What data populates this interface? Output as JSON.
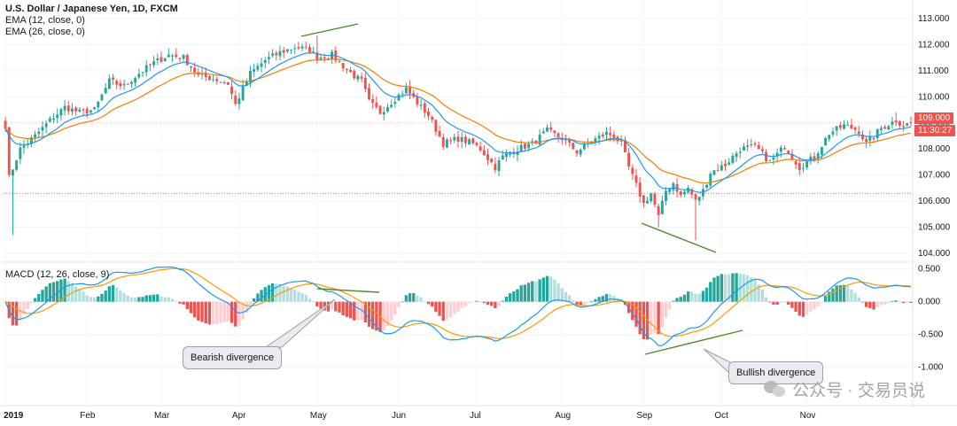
{
  "price_legend": {
    "title": "U.S. Dollar / Japanese Yen, 1D, FXCM",
    "ema_fast": "EMA (12, close, 0)",
    "ema_slow": "EMA (26, close, 0)"
  },
  "macd_legend": {
    "title": "MACD (12, 26, close, 9)"
  },
  "badges": {
    "last_price": "109.000",
    "countdown": "11:30:27"
  },
  "callouts": {
    "bearish": "Bearish divergence",
    "bullish": "Bullish divergence"
  },
  "watermark": {
    "text": "公众号 · 交易员说"
  },
  "colors": {
    "up": "#26a69a",
    "down": "#ef5350",
    "ema_fast": "#2196f3",
    "ema_slow": "#f57c00",
    "macd_line": "#2196f3",
    "signal_line": "#ff9800",
    "hist_up_strong": "#26a69a",
    "hist_up_weak": "#b2dfdb",
    "hist_down_strong": "#ef5350",
    "hist_down_weak": "#ffcdd2",
    "divergence_line": "#4c8c2b",
    "reference_line": "#e57373",
    "badge_bg": "#ef5350"
  },
  "chart_data": [
    {
      "type": "candlestick",
      "title": "U.S. Dollar / Japanese Yen, 1D, FXCM",
      "ylim": [
        103.8,
        113.3
      ],
      "y_ticks": [
        "113.000",
        "112.000",
        "111.000",
        "110.000",
        "109.000",
        "108.000",
        "107.000",
        "106.000",
        "105.000",
        "104.000"
      ],
      "x_ticks": [
        "2019",
        "Feb",
        "Mar",
        "Apr",
        "May",
        "Jun",
        "Jul",
        "Aug",
        "Sep",
        "Oct",
        "Nov"
      ],
      "anchor_closes": [
        [
          0,
          108.9
        ],
        [
          1,
          106.9
        ],
        [
          4,
          108.0
        ],
        [
          8,
          108.5
        ],
        [
          12,
          109.1
        ],
        [
          16,
          109.6
        ],
        [
          20,
          109.4
        ],
        [
          24,
          109.5
        ],
        [
          28,
          110.6
        ],
        [
          32,
          110.4
        ],
        [
          36,
          110.9
        ],
        [
          40,
          111.3
        ],
        [
          44,
          111.6
        ],
        [
          48,
          111.5
        ],
        [
          52,
          110.8
        ],
        [
          56,
          110.7
        ],
        [
          60,
          110.5
        ],
        [
          62,
          109.7
        ],
        [
          66,
          110.9
        ],
        [
          70,
          111.4
        ],
        [
          74,
          111.7
        ],
        [
          78,
          111.9
        ],
        [
          82,
          111.8
        ],
        [
          84,
          111.5
        ],
        [
          88,
          111.6
        ],
        [
          90,
          111.3
        ],
        [
          94,
          110.8
        ],
        [
          96,
          110.6
        ],
        [
          98,
          109.8
        ],
        [
          101,
          109.4
        ],
        [
          104,
          109.8
        ],
        [
          108,
          110.3
        ],
        [
          112,
          109.6
        ],
        [
          114,
          109.3
        ],
        [
          118,
          108.2
        ],
        [
          122,
          108.4
        ],
        [
          126,
          108.2
        ],
        [
          128,
          108.0
        ],
        [
          132,
          107.3
        ],
        [
          134,
          107.7
        ],
        [
          138,
          108.0
        ],
        [
          142,
          108.2
        ],
        [
          146,
          108.7
        ],
        [
          150,
          108.4
        ],
        [
          154,
          107.9
        ],
        [
          158,
          108.3
        ],
        [
          162,
          108.6
        ],
        [
          164,
          108.5
        ],
        [
          166,
          108.2
        ],
        [
          168,
          107.3
        ],
        [
          170,
          106.6
        ],
        [
          172,
          105.9
        ],
        [
          174,
          106.3
        ],
        [
          176,
          105.4
        ],
        [
          178,
          106.4
        ],
        [
          180,
          106.7
        ],
        [
          182,
          106.2
        ],
        [
          184,
          106.5
        ],
        [
          186,
          106.0
        ],
        [
          188,
          106.4
        ],
        [
          190,
          107.1
        ],
        [
          194,
          107.4
        ],
        [
          198,
          108.0
        ],
        [
          202,
          108.1
        ],
        [
          206,
          107.5
        ],
        [
          210,
          108.1
        ],
        [
          214,
          107.3
        ],
        [
          218,
          107.7
        ],
        [
          222,
          108.6
        ],
        [
          226,
          108.9
        ],
        [
          230,
          108.7
        ],
        [
          232,
          108.2
        ],
        [
          236,
          108.8
        ],
        [
          240,
          109.1
        ],
        [
          242,
          108.9
        ],
        [
          244,
          109.0
        ]
      ],
      "ema_periods": [
        12,
        26
      ],
      "price_line": 106.3,
      "divergence_line": {
        "from": [
          84,
          112.6
        ],
        "to": [
          72,
          112.1
        ]
      },
      "divergence_line_2": {
        "from": [
          176,
          105.2
        ],
        "to": [
          196,
          104.0
        ]
      }
    },
    {
      "type": "histogram+line",
      "title": "MACD (12, 26, close, 9)",
      "ylim": [
        -1.45,
        0.55
      ],
      "y_ticks": [
        "0.500",
        "0.000",
        "-0.500",
        "-1.000"
      ],
      "series": [
        {
          "name": "MACD",
          "values": "derived from closes"
        },
        {
          "name": "Signal",
          "values": "derived from closes"
        }
      ],
      "divergence_line_top": {
        "from": [
          72,
          0.32
        ],
        "to": [
          90,
          0.28
        ]
      },
      "divergence_line_bottom": {
        "from": [
          176,
          -0.68
        ],
        "to": [
          204,
          -0.3
        ]
      }
    }
  ]
}
